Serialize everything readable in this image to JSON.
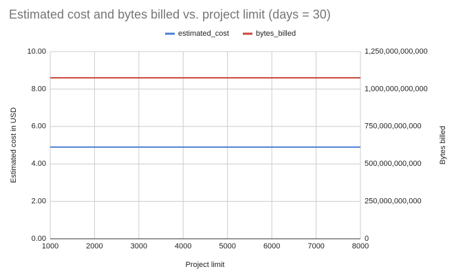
{
  "chart_data": {
    "type": "line",
    "title": "Estimated cost and bytes billed vs. project limit (days = 30)",
    "x_label": "Project limit",
    "y_label": "Estimated cost in USD",
    "y2_label": "Bytes billed",
    "x": [
      1000,
      2000,
      3000,
      4000,
      5000,
      6000,
      7000,
      8000
    ],
    "series": [
      {
        "name": "estimated_cost",
        "color": "#4a7fd6",
        "values": [
          4.9,
          4.9,
          4.9,
          4.9,
          4.9,
          4.9,
          4.9,
          4.9
        ]
      },
      {
        "name": "bytes_billed",
        "color": "#c9463a",
        "axis": "y2",
        "values": [
          1075000000000,
          1075000000000,
          1075000000000,
          1075000000000,
          1075000000000,
          1075000000000,
          1075000000000,
          1075000000000
        ]
      }
    ],
    "xlim": [
      1000,
      8000
    ],
    "xticks": [
      1000,
      2000,
      3000,
      4000,
      5000,
      6000,
      7000,
      8000
    ],
    "ylim": [
      0,
      10
    ],
    "yticks": [
      {
        "value": 0,
        "label": "0.00"
      },
      {
        "value": 2,
        "label": "2.00"
      },
      {
        "value": 4,
        "label": "4.00"
      },
      {
        "value": 6,
        "label": "6.00"
      },
      {
        "value": 8,
        "label": "8.00"
      },
      {
        "value": 10,
        "label": "10.00"
      }
    ],
    "y2lim": [
      0,
      1250000000000
    ],
    "y2ticks": [
      0,
      {
        "value": 250000000000,
        "label": "250,000,000,000"
      },
      {
        "value": 500000000000,
        "label": "500,000,000,000"
      },
      {
        "value": 750000000000,
        "label": "750,000,000,000"
      },
      {
        "value": 1000000000000,
        "label": "1,000,000,000,000"
      },
      {
        "value": 1250000000000,
        "label": "1,250,000,000,000"
      }
    ],
    "grid": true,
    "legend": "top"
  }
}
